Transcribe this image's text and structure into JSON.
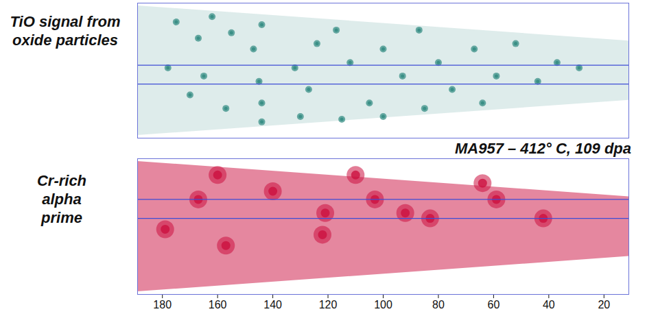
{
  "chart_data": [
    {
      "type": "scatter",
      "title": "TiO signal from oxide particles",
      "color": "#2f8a80",
      "x": [
        175,
        167,
        162,
        155,
        147,
        144,
        132,
        127,
        124,
        117,
        112,
        105,
        100,
        93,
        87,
        80,
        75,
        67,
        59,
        52,
        44,
        37,
        29,
        145,
        144,
        144,
        157,
        170,
        130,
        115,
        100,
        85,
        64,
        178,
        165
      ],
      "y": [
        18,
        12,
        20,
        14,
        8,
        17,
        1,
        -7,
        10,
        15,
        3,
        -12,
        8,
        -2,
        15,
        3,
        -7,
        8,
        -2,
        10,
        -4,
        3,
        1,
        -4,
        -12,
        -19,
        -14,
        -9,
        -17,
        -18,
        -17,
        -14,
        -12,
        1,
        -2
      ],
      "xlim": [
        189,
        11
      ],
      "ylim": [
        -25,
        25
      ],
      "tick_labels": false,
      "envelope": {
        "x": [
          189,
          11
        ],
        "low": [
          -24,
          -11
        ],
        "high": [
          24,
          11
        ]
      },
      "lines_y": [
        2,
        -5
      ]
    },
    {
      "type": "scatter",
      "title": "Cr-rich alpha prime",
      "annotation": "MA957 – 412° C, 109 dpa",
      "color": "#cc1040",
      "x": [
        160,
        167,
        157,
        121,
        122,
        103,
        92,
        83,
        64,
        59,
        110,
        42,
        140,
        179
      ],
      "y": [
        19,
        10,
        -7,
        5,
        -3,
        10,
        5,
        3,
        16,
        10,
        19,
        3,
        13,
        -1
      ],
      "xlim": [
        189,
        11
      ],
      "ylim": [
        -25,
        25
      ],
      "xticks": [
        180,
        160,
        140,
        120,
        100,
        80,
        60,
        40,
        20
      ],
      "tick_labels": "x",
      "envelope": {
        "x": [
          189,
          11
        ],
        "low": [
          -24,
          -11
        ],
        "high": [
          24,
          11
        ]
      },
      "lines_y": [
        10,
        3
      ]
    }
  ]
}
